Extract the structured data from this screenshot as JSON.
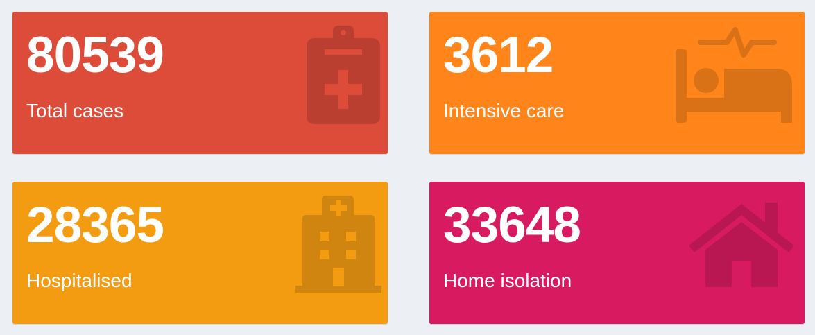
{
  "cards": [
    {
      "value": "80539",
      "label": "Total cases",
      "icon": "clipboard-medical-icon",
      "color": "#dd4b39",
      "icon_color": "#bb3f30"
    },
    {
      "value": "3612",
      "label": "Intensive care",
      "icon": "hospital-bed-heartbeat-icon",
      "color": "#ff851b",
      "icon_color": "#d97217"
    },
    {
      "value": "28365",
      "label": "Hospitalised",
      "icon": "hospital-building-icon",
      "color": "#f39c12",
      "icon_color": "#cf850f"
    },
    {
      "value": "33648",
      "label": "Home isolation",
      "icon": "house-icon",
      "color": "#d81b60",
      "icon_color": "#b81752"
    }
  ]
}
